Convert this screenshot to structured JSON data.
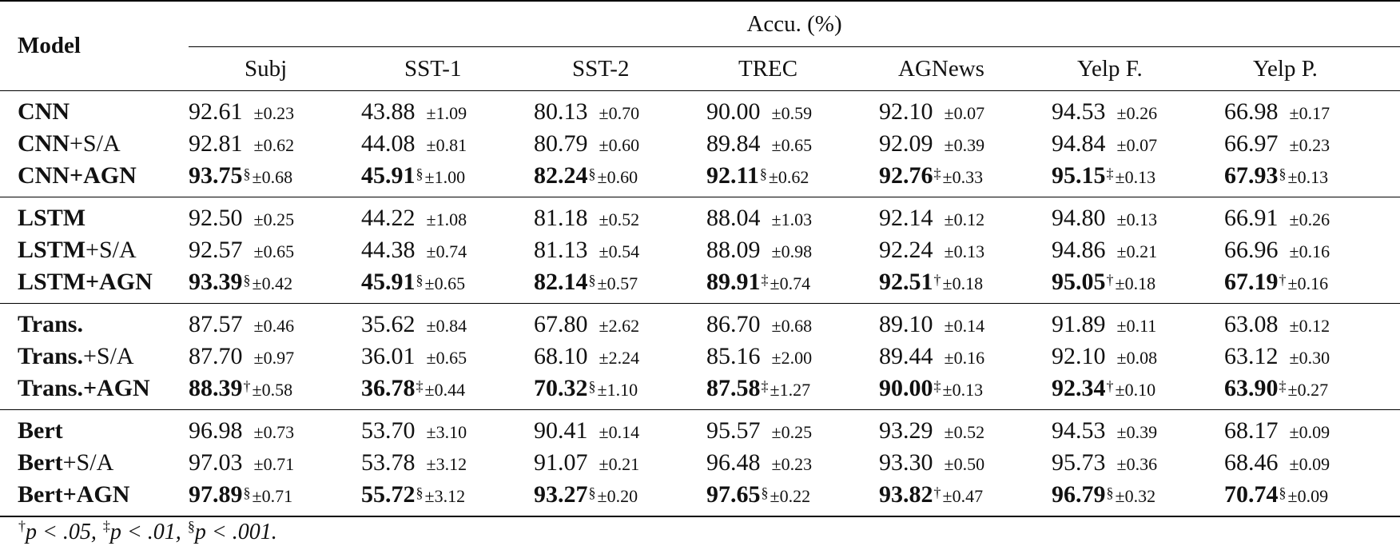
{
  "header": {
    "model_label": "Model",
    "group_label": "Accu. (%)",
    "columns": [
      "Subj",
      "SST-1",
      "SST-2",
      "TREC",
      "AGNews",
      "Yelp F.",
      "Yelp P."
    ]
  },
  "groups": [
    {
      "rows": [
        {
          "name": "CNN",
          "suffix": "",
          "best": false,
          "cells": [
            {
              "v": "92.61",
              "s": "±0.23",
              "sig": ""
            },
            {
              "v": "43.88",
              "s": "±1.09",
              "sig": ""
            },
            {
              "v": "80.13",
              "s": "±0.70",
              "sig": ""
            },
            {
              "v": "90.00",
              "s": "±0.59",
              "sig": ""
            },
            {
              "v": "92.10",
              "s": "±0.07",
              "sig": ""
            },
            {
              "v": "94.53",
              "s": "±0.26",
              "sig": ""
            },
            {
              "v": "66.98",
              "s": "±0.17",
              "sig": ""
            }
          ]
        },
        {
          "name": "CNN",
          "suffix": "+S/A",
          "best": false,
          "cells": [
            {
              "v": "92.81",
              "s": "±0.62",
              "sig": ""
            },
            {
              "v": "44.08",
              "s": "±0.81",
              "sig": ""
            },
            {
              "v": "80.79",
              "s": "±0.60",
              "sig": ""
            },
            {
              "v": "89.84",
              "s": "±0.65",
              "sig": ""
            },
            {
              "v": "92.09",
              "s": "±0.39",
              "sig": ""
            },
            {
              "v": "94.84",
              "s": "±0.07",
              "sig": ""
            },
            {
              "v": "66.97",
              "s": "±0.23",
              "sig": ""
            }
          ]
        },
        {
          "name": "CNN+AGN",
          "suffix": "",
          "best": true,
          "cells": [
            {
              "v": "93.75",
              "s": "±0.68",
              "sig": "§"
            },
            {
              "v": "45.91",
              "s": "±1.00",
              "sig": "§"
            },
            {
              "v": "82.24",
              "s": "±0.60",
              "sig": "§"
            },
            {
              "v": "92.11",
              "s": "±0.62",
              "sig": "§"
            },
            {
              "v": "92.76",
              "s": "±0.33",
              "sig": "‡"
            },
            {
              "v": "95.15",
              "s": "±0.13",
              "sig": "‡"
            },
            {
              "v": "67.93",
              "s": "±0.13",
              "sig": "§"
            }
          ]
        }
      ]
    },
    {
      "rows": [
        {
          "name": "LSTM",
          "suffix": "",
          "best": false,
          "cells": [
            {
              "v": "92.50",
              "s": "±0.25",
              "sig": ""
            },
            {
              "v": "44.22",
              "s": "±1.08",
              "sig": ""
            },
            {
              "v": "81.18",
              "s": "±0.52",
              "sig": ""
            },
            {
              "v": "88.04",
              "s": "±1.03",
              "sig": ""
            },
            {
              "v": "92.14",
              "s": "±0.12",
              "sig": ""
            },
            {
              "v": "94.80",
              "s": "±0.13",
              "sig": ""
            },
            {
              "v": "66.91",
              "s": "±0.26",
              "sig": ""
            }
          ]
        },
        {
          "name": "LSTM",
          "suffix": "+S/A",
          "best": false,
          "cells": [
            {
              "v": "92.57",
              "s": "±0.65",
              "sig": ""
            },
            {
              "v": "44.38",
              "s": "±0.74",
              "sig": ""
            },
            {
              "v": "81.13",
              "s": "±0.54",
              "sig": ""
            },
            {
              "v": "88.09",
              "s": "±0.98",
              "sig": ""
            },
            {
              "v": "92.24",
              "s": "±0.13",
              "sig": ""
            },
            {
              "v": "94.86",
              "s": "±0.21",
              "sig": ""
            },
            {
              "v": "66.96",
              "s": "±0.16",
              "sig": ""
            }
          ]
        },
        {
          "name": "LSTM+AGN",
          "suffix": "",
          "best": true,
          "cells": [
            {
              "v": "93.39",
              "s": "±0.42",
              "sig": "§"
            },
            {
              "v": "45.91",
              "s": "±0.65",
              "sig": "§"
            },
            {
              "v": "82.14",
              "s": "±0.57",
              "sig": "§"
            },
            {
              "v": "89.91",
              "s": "±0.74",
              "sig": "‡"
            },
            {
              "v": "92.51",
              "s": "±0.18",
              "sig": "†"
            },
            {
              "v": "95.05",
              "s": "±0.18",
              "sig": "†"
            },
            {
              "v": "67.19",
              "s": "±0.16",
              "sig": "†"
            }
          ]
        }
      ]
    },
    {
      "rows": [
        {
          "name": "Trans.",
          "suffix": "",
          "best": false,
          "cells": [
            {
              "v": "87.57",
              "s": "±0.46",
              "sig": ""
            },
            {
              "v": "35.62",
              "s": "±0.84",
              "sig": ""
            },
            {
              "v": "67.80",
              "s": "±2.62",
              "sig": ""
            },
            {
              "v": "86.70",
              "s": "±0.68",
              "sig": ""
            },
            {
              "v": "89.10",
              "s": "±0.14",
              "sig": ""
            },
            {
              "v": "91.89",
              "s": "±0.11",
              "sig": ""
            },
            {
              "v": "63.08",
              "s": "±0.12",
              "sig": ""
            }
          ]
        },
        {
          "name": "Trans.",
          "suffix": "+S/A",
          "best": false,
          "cells": [
            {
              "v": "87.70",
              "s": "±0.97",
              "sig": ""
            },
            {
              "v": "36.01",
              "s": "±0.65",
              "sig": ""
            },
            {
              "v": "68.10",
              "s": "±2.24",
              "sig": ""
            },
            {
              "v": "85.16",
              "s": "±2.00",
              "sig": ""
            },
            {
              "v": "89.44",
              "s": "±0.16",
              "sig": ""
            },
            {
              "v": "92.10",
              "s": "±0.08",
              "sig": ""
            },
            {
              "v": "63.12",
              "s": "±0.30",
              "sig": ""
            }
          ]
        },
        {
          "name": "Trans.+AGN",
          "suffix": "",
          "best": true,
          "cells": [
            {
              "v": "88.39",
              "s": "±0.58",
              "sig": "†"
            },
            {
              "v": "36.78",
              "s": "±0.44",
              "sig": "‡"
            },
            {
              "v": "70.32",
              "s": "±1.10",
              "sig": "§"
            },
            {
              "v": "87.58",
              "s": "±1.27",
              "sig": "‡"
            },
            {
              "v": "90.00",
              "s": "±0.13",
              "sig": "‡"
            },
            {
              "v": "92.34",
              "s": "±0.10",
              "sig": "†"
            },
            {
              "v": "63.90",
              "s": "±0.27",
              "sig": "‡"
            }
          ]
        }
      ]
    },
    {
      "rows": [
        {
          "name": "Bert",
          "suffix": "",
          "best": false,
          "cells": [
            {
              "v": "96.98",
              "s": "±0.73",
              "sig": ""
            },
            {
              "v": "53.70",
              "s": "±3.10",
              "sig": ""
            },
            {
              "v": "90.41",
              "s": "±0.14",
              "sig": ""
            },
            {
              "v": "95.57",
              "s": "±0.25",
              "sig": ""
            },
            {
              "v": "93.29",
              "s": "±0.52",
              "sig": ""
            },
            {
              "v": "94.53",
              "s": "±0.39",
              "sig": ""
            },
            {
              "v": "68.17",
              "s": "±0.09",
              "sig": ""
            }
          ]
        },
        {
          "name": "Bert",
          "suffix": "+S/A",
          "best": false,
          "cells": [
            {
              "v": "97.03",
              "s": "±0.71",
              "sig": ""
            },
            {
              "v": "53.78",
              "s": "±3.12",
              "sig": ""
            },
            {
              "v": "91.07",
              "s": "±0.21",
              "sig": ""
            },
            {
              "v": "96.48",
              "s": "±0.23",
              "sig": ""
            },
            {
              "v": "93.30",
              "s": "±0.50",
              "sig": ""
            },
            {
              "v": "95.73",
              "s": "±0.36",
              "sig": ""
            },
            {
              "v": "68.46",
              "s": "±0.09",
              "sig": ""
            }
          ]
        },
        {
          "name": "Bert+AGN",
          "suffix": "",
          "best": true,
          "cells": [
            {
              "v": "97.89",
              "s": "±0.71",
              "sig": "§"
            },
            {
              "v": "55.72",
              "s": "±3.12",
              "sig": "§"
            },
            {
              "v": "93.27",
              "s": "±0.20",
              "sig": "§"
            },
            {
              "v": "97.65",
              "s": "±0.22",
              "sig": "§"
            },
            {
              "v": "93.82",
              "s": "±0.47",
              "sig": "†"
            },
            {
              "v": "96.79",
              "s": "±0.32",
              "sig": "§"
            },
            {
              "v": "70.74",
              "s": "±0.09",
              "sig": "§"
            }
          ]
        }
      ]
    }
  ],
  "footnote": [
    {
      "sym": "†",
      "text": "p < .05, "
    },
    {
      "sym": "‡",
      "text": "p < .01, "
    },
    {
      "sym": "§",
      "text": "p < .001."
    }
  ]
}
